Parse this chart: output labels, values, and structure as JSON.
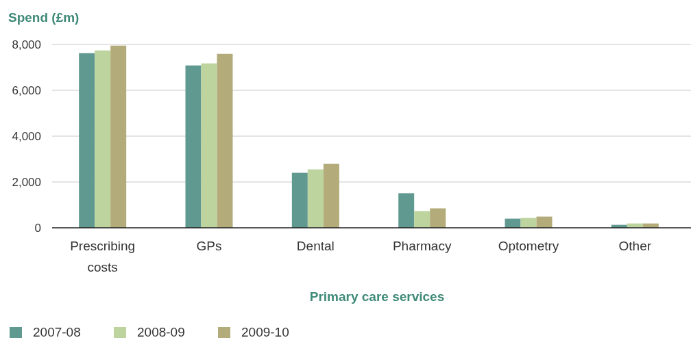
{
  "chart_data": {
    "type": "bar",
    "ylabel": "Spend (£m)",
    "xlabel": "Primary care services",
    "categories": [
      "Prescribing costs",
      "GPs",
      "Dental",
      "Pharmacy",
      "Optometry",
      "Other"
    ],
    "series": [
      {
        "name": "2007-08",
        "color": "#5f998f",
        "values": [
          7620,
          7085,
          2400,
          1510,
          400,
          130
        ]
      },
      {
        "name": "2008-09",
        "color": "#bdd49f",
        "values": [
          7740,
          7175,
          2550,
          730,
          430,
          190
        ]
      },
      {
        "name": "2009-10",
        "color": "#b4ab7b",
        "values": [
          7950,
          7590,
          2790,
          850,
          490,
          190
        ]
      }
    ],
    "ylim": [
      0,
      8000
    ],
    "yticks": [
      {
        "value": 0,
        "label": "0"
      },
      {
        "value": 2000,
        "label": "2,000"
      },
      {
        "value": 4000,
        "label": "4,000"
      },
      {
        "value": 6000,
        "label": "6,000"
      },
      {
        "value": 8000,
        "label": "8,000"
      }
    ],
    "grid": "y",
    "legend": "bottom"
  }
}
